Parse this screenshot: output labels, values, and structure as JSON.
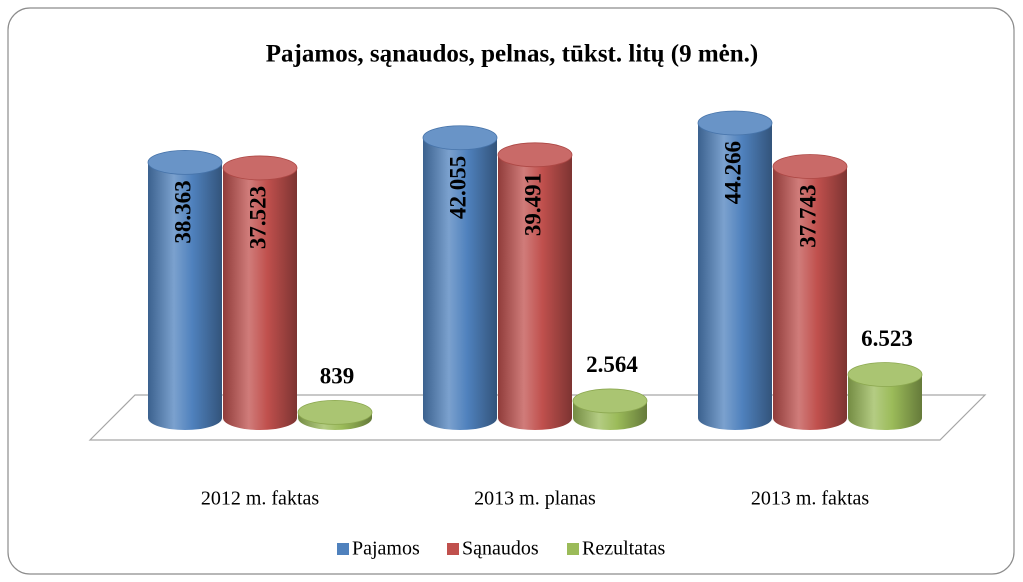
{
  "chart_data": {
    "type": "bar3d-cylinder",
    "title": "Pajamos, sąnaudos, pelnas, tūkst. litų (9 mėn.)",
    "categories": [
      "2012 m. faktas",
      "2013 m. planas",
      "2013 m. faktas"
    ],
    "series": [
      {
        "name": "Pajamos",
        "color": "#4f81bd",
        "values": [
          38363,
          42055,
          44266
        ],
        "value_labels": [
          "38.363",
          "42.055",
          "44.266"
        ]
      },
      {
        "name": "Sąnaudos",
        "color": "#c0504d",
        "values": [
          37523,
          39491,
          37743
        ],
        "value_labels": [
          "37.523",
          "39.491",
          "37.743"
        ]
      },
      {
        "name": "Rezultatas",
        "color": "#9bbb59",
        "values": [
          839,
          2564,
          6523
        ],
        "value_labels": [
          "839",
          "2.564",
          "6.523"
        ]
      }
    ],
    "legend": "bottom"
  }
}
